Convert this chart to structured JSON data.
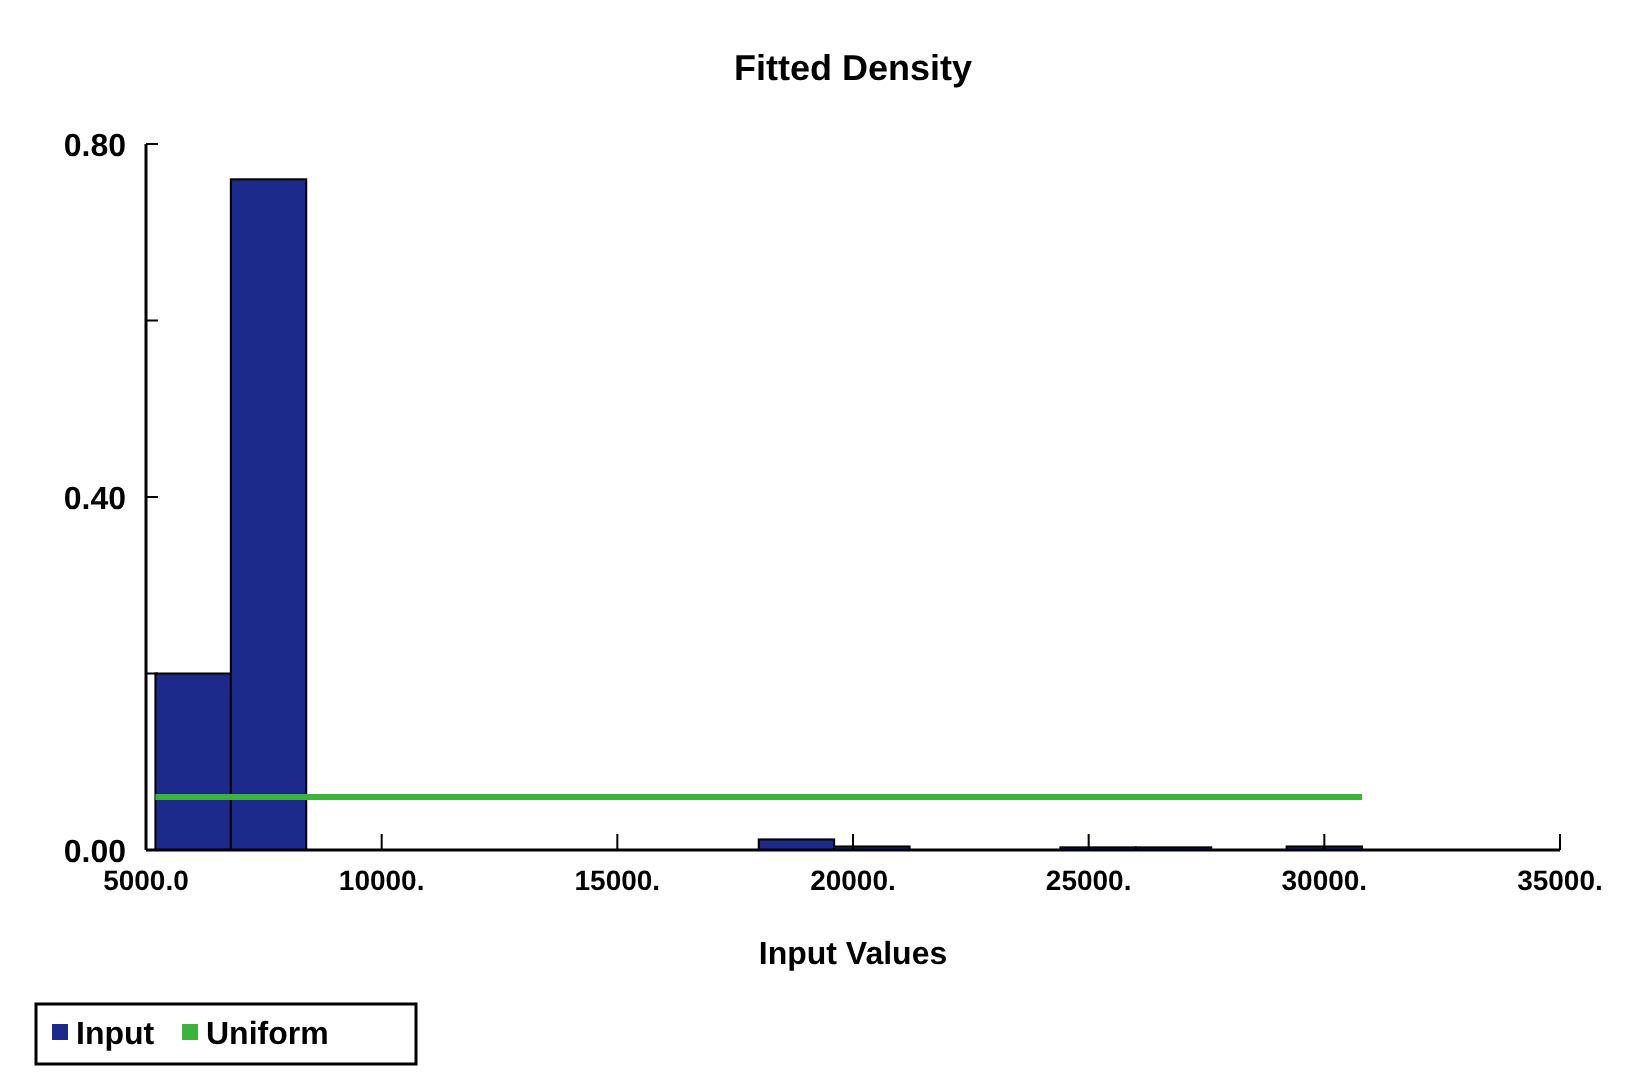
{
  "chart_data": {
    "type": "histogram",
    "title": "Fitted Density",
    "xlabel": "Input Values",
    "bins": [
      5200,
      6800,
      8400,
      10000,
      11600,
      13200,
      14800,
      16400,
      18000,
      19600,
      21200,
      22800,
      24400,
      26000,
      27600,
      29200,
      30800
    ],
    "series": [
      {
        "name": "Input",
        "color": "#1c2a8c",
        "values": [
          0.2,
          0.76,
          0,
          0,
          0,
          0,
          0,
          0,
          0.012,
          0.004,
          0,
          0,
          0.003,
          0.003,
          0,
          0.004
        ]
      },
      {
        "name": "Uniform",
        "type": "line",
        "color": "#3cb43c",
        "x": [
          5200,
          30800
        ],
        "values": [
          0.06,
          0.06
        ]
      }
    ],
    "xlim": [
      5000,
      35000
    ],
    "xticks": [
      {
        "value": 5000,
        "label": "5000.0"
      },
      {
        "value": 10000,
        "label": "10000."
      },
      {
        "value": 15000,
        "label": "15000."
      },
      {
        "value": 20000,
        "label": "20000."
      },
      {
        "value": 25000,
        "label": "25000."
      },
      {
        "value": 30000,
        "label": "30000."
      },
      {
        "value": 35000,
        "label": "35000."
      }
    ],
    "ylim": [
      0,
      0.8
    ],
    "yticks": [
      {
        "value": 0,
        "label": "0.00"
      },
      {
        "value": 0.2,
        "label": null
      },
      {
        "value": 0.4,
        "label": "0.40"
      },
      {
        "value": 0.6,
        "label": null
      },
      {
        "value": 0.8,
        "label": "0.80"
      }
    ],
    "legend": "bottom left",
    "grid": false
  }
}
